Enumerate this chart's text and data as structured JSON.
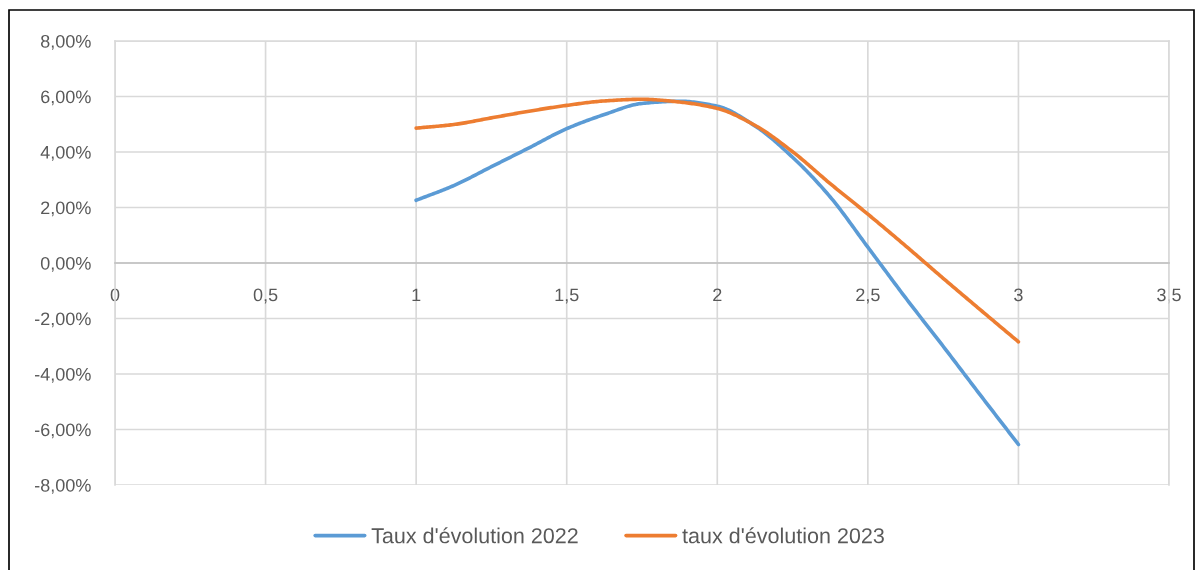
{
  "chart_data": {
    "type": "line",
    "series": [
      {
        "name": "Taux d'évolution 2022",
        "color": "#5b9bd5",
        "x": [
          1,
          1.125,
          1.25,
          1.375,
          1.5,
          1.625,
          1.75,
          1.875,
          2,
          2.125,
          2.25,
          2.375,
          2.5,
          2.625,
          2.75,
          2.875,
          3
        ],
        "values": [
          2.26,
          2.79,
          3.47,
          4.15,
          4.84,
          5.35,
          5.75,
          5.83,
          5.65,
          4.94,
          3.81,
          2.38,
          0.57,
          -1.25,
          -3.0,
          -4.78,
          -6.54
        ]
      },
      {
        "name": "taux d'évolution 2023",
        "color": "#ed7d31",
        "x": [
          1,
          1.125,
          1.25,
          1.375,
          1.5,
          1.625,
          1.75,
          1.875,
          2,
          2.125,
          2.25,
          2.375,
          2.5,
          2.625,
          2.75,
          2.875,
          3
        ],
        "values": [
          4.86,
          4.99,
          5.23,
          5.47,
          5.68,
          5.84,
          5.9,
          5.8,
          5.57,
          4.96,
          4.01,
          2.86,
          1.76,
          0.62,
          -0.55,
          -1.7,
          -2.84
        ]
      }
    ],
    "xlim": [
      0,
      3.5
    ],
    "xticks": [
      0,
      {
        "value": 0.5,
        "label": "0,5"
      },
      1,
      {
        "value": 1.5,
        "label": "1,5"
      },
      2,
      {
        "value": 2.5,
        "label": "2,5"
      },
      3,
      {
        "value": 3.5,
        "label": "3,5"
      }
    ],
    "ylim": [
      -8,
      8
    ],
    "yticks": [
      {
        "value": -8,
        "label": "-8,00%"
      },
      {
        "value": -6,
        "label": "-6,00%"
      },
      {
        "value": -4,
        "label": "-4,00%"
      },
      {
        "value": -2,
        "label": "-2,00%"
      },
      {
        "value": 0,
        "label": "0,00%"
      },
      {
        "value": 2,
        "label": "2,00%"
      },
      {
        "value": 4,
        "label": "4,00%"
      },
      {
        "value": 6,
        "label": "6,00%"
      },
      {
        "value": 8,
        "label": "8,00%"
      }
    ],
    "grid": true,
    "legend": "bottom"
  }
}
